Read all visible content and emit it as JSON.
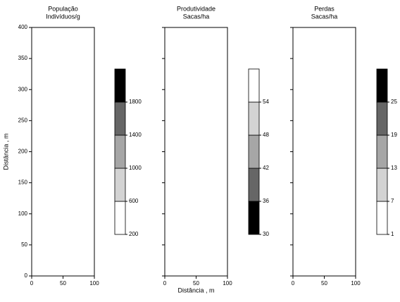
{
  "chart_data": [
    {
      "type": "contour",
      "title": "População",
      "subtitle": "Indivíduos/g",
      "ylabel": "Distância , m",
      "xlim": [
        0,
        100
      ],
      "xticks": [
        0,
        50,
        100
      ],
      "ylim": [
        0,
        400
      ],
      "yticks": [
        0,
        50,
        100,
        150,
        200,
        250,
        300,
        350,
        400
      ],
      "show_ytick_labels": true,
      "levels": [
        200,
        600,
        1000,
        1400,
        1800
      ],
      "colors": [
        "#ffffff",
        "#d3d3d3",
        "#a6a6a6",
        "#666666",
        "#000000"
      ]
    },
    {
      "type": "contour",
      "title": "Produtividade",
      "subtitle": "Sacas/ha",
      "xlabel": "Distância , m",
      "xlim": [
        0,
        100
      ],
      "xticks": [
        0,
        50,
        100
      ],
      "ylim": [
        0,
        400
      ],
      "yticks": [
        0,
        50,
        100,
        150,
        200,
        250,
        300,
        350,
        400
      ],
      "show_ytick_labels": false,
      "levels": [
        30,
        36,
        42,
        48,
        54
      ],
      "colors": [
        "#000000",
        "#666666",
        "#a6a6a6",
        "#d3d3d3",
        "#ffffff"
      ]
    },
    {
      "type": "contour",
      "title": "Perdas",
      "subtitle": "Sacas/ha",
      "xlim": [
        0,
        100
      ],
      "xticks": [
        0,
        50,
        100
      ],
      "ylim": [
        0,
        400
      ],
      "yticks": [
        0,
        50,
        100,
        150,
        200,
        250,
        300,
        350,
        400
      ],
      "show_ytick_labels": false,
      "levels": [
        1,
        7,
        13,
        19,
        25
      ],
      "colors": [
        "#ffffff",
        "#d3d3d3",
        "#a6a6a6",
        "#666666",
        "#000000"
      ]
    }
  ]
}
